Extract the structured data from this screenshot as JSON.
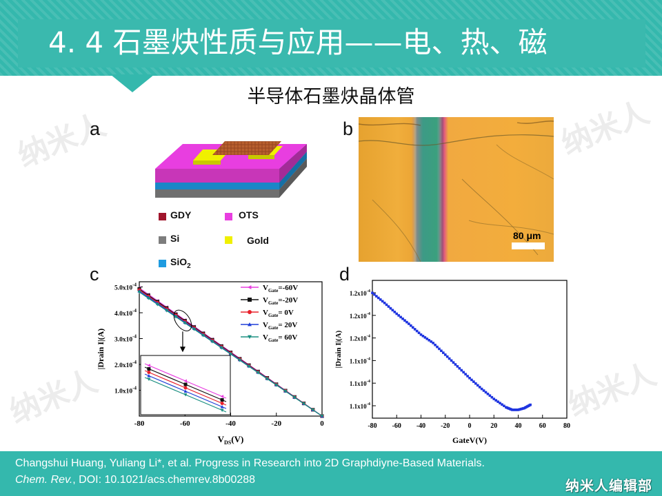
{
  "header": {
    "title": "4. 4 石墨炔性质与应用——电、热、磁"
  },
  "subtitle": "半导体石墨炔晶体管",
  "watermark": "纳米人",
  "panels": {
    "a": {
      "letter": "a",
      "legend": [
        {
          "label": "GDY",
          "color": "#a0152c"
        },
        {
          "label": "OTS",
          "color": "#e83ee0"
        },
        {
          "label": "Si",
          "color": "#7d7d7d"
        },
        {
          "label": "Gold",
          "color": "#f0f000"
        },
        {
          "label": "SiO",
          "sub": "2",
          "color": "#1f9be0"
        }
      ]
    },
    "b": {
      "letter": "b",
      "scale_label": "80 μm"
    },
    "c": {
      "letter": "c"
    },
    "d": {
      "letter": "d"
    }
  },
  "chart_data": [
    {
      "type": "line",
      "panel": "c",
      "xlabel_main": "V",
      "xlabel_sub": "DS",
      "xlabel_unit": "(V)",
      "ylabel": "|Drain I|(A)",
      "xlim": [
        -80,
        0
      ],
      "ylim": [
        0,
        0.00052
      ],
      "x_ticks": [
        "-80",
        "-60",
        "-40",
        "-20",
        "0"
      ],
      "y_ticks": [
        {
          "value": 0.0001,
          "label": "1.0x10"
        },
        {
          "value": 0.0002,
          "label": "2.0x10"
        },
        {
          "value": 0.0003,
          "label": "3.0x10"
        },
        {
          "value": 0.0004,
          "label": "4.0x10"
        },
        {
          "value": 0.0005,
          "label": "5.0x10"
        }
      ],
      "y_tick_exponent": "-4",
      "legend_placement": "top-right",
      "x": [
        -80,
        -76,
        -72,
        -68,
        -64,
        -60,
        -56,
        -52,
        -48,
        -44,
        -40,
        -36,
        -32,
        -28,
        -24,
        -20,
        -16,
        -12,
        -8,
        -4,
        0
      ],
      "series": [
        {
          "name_main": "V",
          "name_sub": "Gate",
          "name_value": "=-60V",
          "color": "#e83ee0",
          "marker": "triangle-left",
          "slope": 6.2e-06
        },
        {
          "name_main": "V",
          "name_sub": "Gate",
          "name_value": "=-20V",
          "color": "#111111",
          "marker": "square",
          "slope": 6.15e-06
        },
        {
          "name_main": "V",
          "name_sub": "Gate",
          "name_value": "=  0V",
          "color": "#e8202a",
          "marker": "circle",
          "slope": 6.1e-06
        },
        {
          "name_main": "V",
          "name_sub": "Gate",
          "name_value": "= 20V",
          "color": "#1f3fd8",
          "marker": "triangle-up",
          "slope": 6.05e-06
        },
        {
          "name_main": "V",
          "name_sub": "Gate",
          "name_value": "= 60V",
          "color": "#1a8f80",
          "marker": "triangle-down",
          "slope": 6e-06
        }
      ]
    },
    {
      "type": "line",
      "panel": "d",
      "xlabel": "GateV(V)",
      "ylabel": "|Drain I|(A)",
      "xlim": [
        -80,
        80
      ],
      "x_ticks": [
        "-80",
        "-60",
        "-40",
        "-20",
        "0",
        "20",
        "40",
        "60",
        "80"
      ],
      "y_tick_labels": [
        "1.2x10",
        "1.2x10",
        "1.2x10",
        "1.1x10",
        "1.1x10",
        "1.1x10"
      ],
      "y_tick_exponent": "-4",
      "series": [
        {
          "color": "#1f35e0",
          "marker": "square",
          "x": [
            -80,
            -70,
            -60,
            -50,
            -40,
            -30,
            -20,
            -10,
            0,
            10,
            20,
            30,
            35,
            40,
            45,
            50
          ],
          "y": [
            1.23,
            1.218,
            1.205,
            1.193,
            1.18,
            1.17,
            1.156,
            1.142,
            1.128,
            1.115,
            1.103,
            1.093,
            1.09,
            1.09,
            1.092,
            1.096
          ]
        }
      ]
    }
  ],
  "footer": {
    "citation_line1": "Changshui Huang, Yuliang Li*, et al. Progress in Research into 2D Graphdiyne-Based Materials.",
    "citation_journal": "Chem. Rev.",
    "citation_doi": ", DOI: 10.1021/acs.chemrev.8b00288",
    "brand": "纳米人编辑部"
  }
}
